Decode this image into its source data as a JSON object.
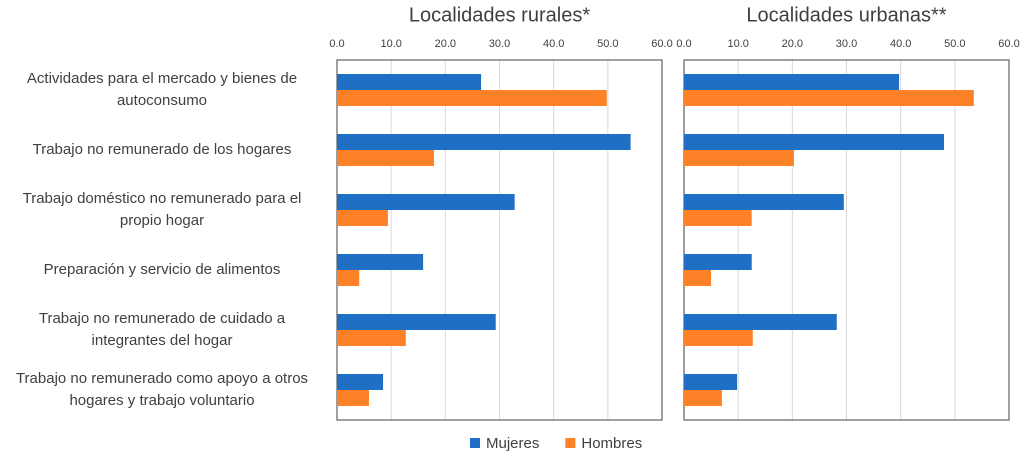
{
  "chart_data": [
    {
      "type": "bar",
      "orientation": "horizontal",
      "title": "Localidades rurales*",
      "categories": [
        "Actividades para el mercado y bienes de autoconsumo",
        "Trabajo no remunerado de los hogares",
        "Trabajo doméstico no remunerado para el propio hogar",
        "Preparación y servicio de alimentos",
        "Trabajo no remunerado de cuidado a integrantes del hogar",
        "Trabajo no remunerado como apoyo  a otros hogares y trabajo voluntario"
      ],
      "series": [
        {
          "name": "Mujeres",
          "color": "#1f6fc5",
          "values": [
            26.6,
            54.2,
            32.8,
            15.9,
            29.3,
            8.5
          ]
        },
        {
          "name": "Hombres",
          "color": "#fd8127",
          "values": [
            49.8,
            17.9,
            9.4,
            4.1,
            12.7,
            5.9
          ]
        }
      ],
      "xlim": [
        0,
        60
      ],
      "xticks": [
        {
          "value": 0,
          "label": "0.0"
        },
        {
          "value": 10,
          "label": "10.0"
        },
        {
          "value": 20,
          "label": "20.0"
        },
        {
          "value": 30,
          "label": "30.0"
        },
        {
          "value": 40,
          "label": "40.0"
        },
        {
          "value": 50,
          "label": "50.0"
        },
        {
          "value": 60,
          "label": "60.0"
        }
      ],
      "grid": true,
      "legend": "bottom"
    },
    {
      "type": "bar",
      "orientation": "horizontal",
      "title": "Localidades urbanas**",
      "series": [
        {
          "name": "Mujeres",
          "color": "#1f6fc5",
          "values": [
            39.7,
            48.0,
            29.5,
            12.5,
            28.2,
            9.8
          ]
        },
        {
          "name": "Hombres",
          "color": "#fd8127",
          "values": [
            53.5,
            20.3,
            12.5,
            5.0,
            12.7,
            7.0
          ]
        }
      ],
      "xlim": [
        0,
        60
      ],
      "xticks": [
        {
          "value": 0,
          "label": "0.0"
        },
        {
          "value": 10,
          "label": "10.0"
        },
        {
          "value": 20,
          "label": "20.0"
        },
        {
          "value": 30,
          "label": "30.0"
        },
        {
          "value": 40,
          "label": "40.0"
        },
        {
          "value": 50,
          "label": "50.0"
        },
        {
          "value": 60,
          "label": "60.0"
        }
      ],
      "grid": true
    }
  ]
}
